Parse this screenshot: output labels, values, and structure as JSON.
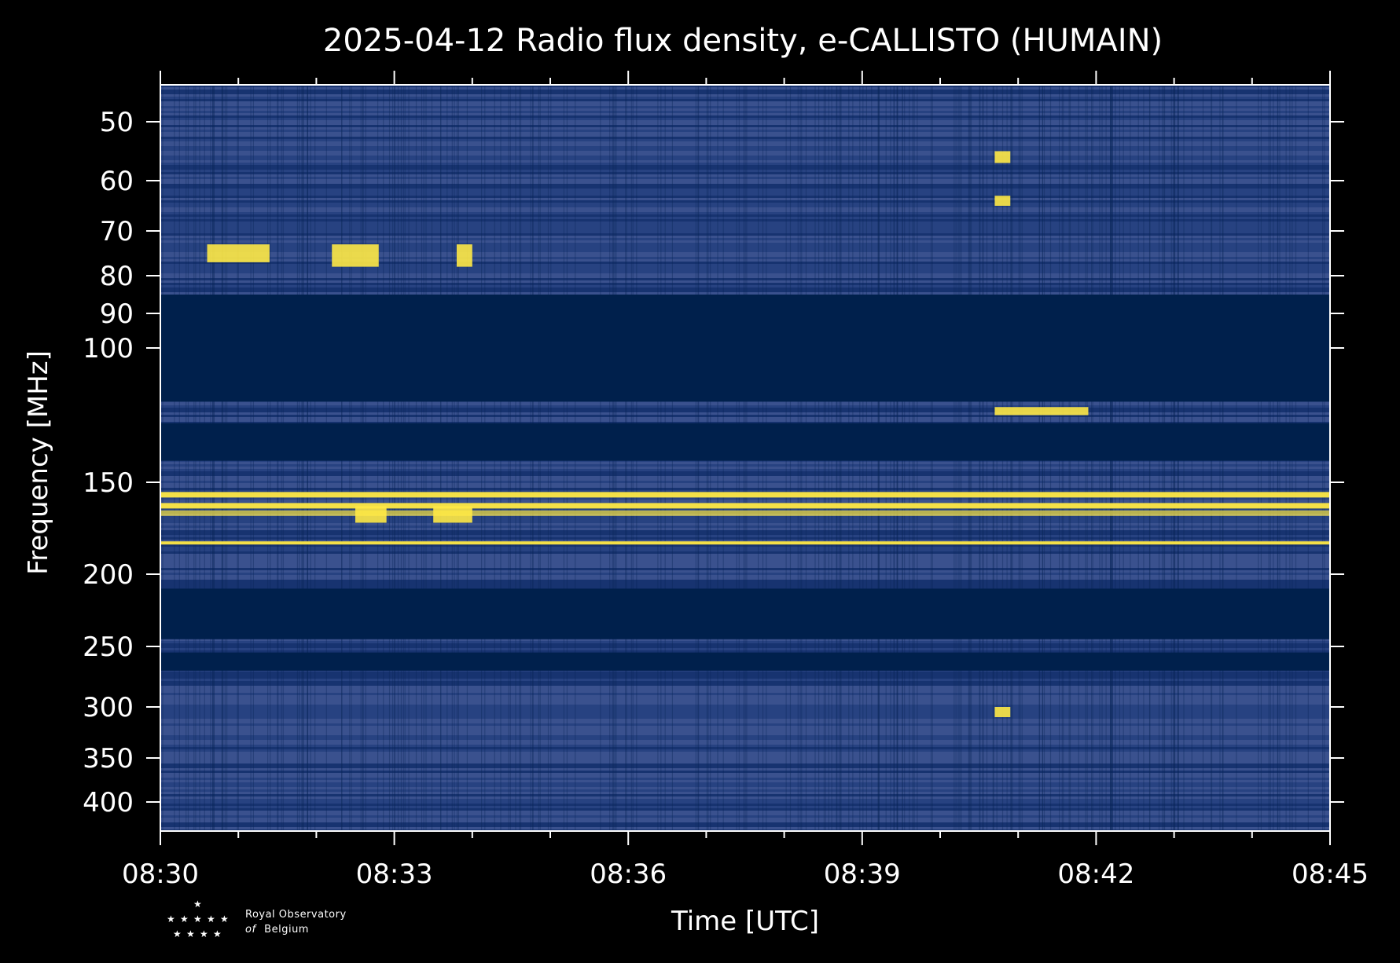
{
  "chart_data": {
    "type": "heatmap",
    "title": "2025-04-12 Radio flux density, e-CALLISTO (HUMAIN)",
    "xlabel": "Time [UTC]",
    "ylabel": "Frequency [MHz]",
    "x_ticks": [
      "08:30",
      "08:33",
      "08:36",
      "08:39",
      "08:42",
      "08:45"
    ],
    "x_range_minutes": [
      0,
      15
    ],
    "y_ticks": [
      50,
      60,
      70,
      80,
      90,
      100,
      150,
      200,
      250,
      300,
      350,
      400
    ],
    "y_range_mhz": [
      45,
      437
    ],
    "y_scale": "log-like, inverted (low frequency at top)",
    "colormap": "cividis",
    "colors": {
      "low": "#00204c",
      "mid": "#3a4e86",
      "high": "#ffe945"
    },
    "grid": false,
    "blank_bands_mhz": [
      [
        85,
        120
      ],
      [
        128,
        142
      ],
      [
        210,
        245
      ],
      [
        255,
        270
      ]
    ],
    "bright_emission_lines_mhz": [
      157,
      163,
      167,
      183
    ],
    "bursts": [
      {
        "t_start": "08:30:36",
        "t_end": "08:31:24",
        "f_mhz": [
          73,
          77
        ]
      },
      {
        "t_start": "08:32:12",
        "t_end": "08:32:48",
        "f_mhz": [
          73,
          78
        ]
      },
      {
        "t_start": "08:33:48",
        "t_end": "08:34:00",
        "f_mhz": [
          73,
          78
        ]
      },
      {
        "t_start": "08:40:42",
        "t_end": "08:40:54",
        "f_mhz": [
          55,
          57
        ]
      },
      {
        "t_start": "08:40:42",
        "t_end": "08:40:54",
        "f_mhz": [
          63,
          65
        ]
      },
      {
        "t_start": "08:40:42",
        "t_end": "08:41:54",
        "f_mhz": [
          122,
          125
        ]
      },
      {
        "t_start": "08:32:30",
        "t_end": "08:32:54",
        "f_mhz": [
          163,
          172
        ]
      },
      {
        "t_start": "08:33:30",
        "t_end": "08:34:00",
        "f_mhz": [
          163,
          172
        ]
      },
      {
        "t_start": "08:40:42",
        "t_end": "08:40:54",
        "f_mhz": [
          300,
          310
        ]
      }
    ]
  },
  "logo": {
    "line1": "Royal Observatory",
    "line2_italic": "of",
    "line2": "Belgium"
  }
}
